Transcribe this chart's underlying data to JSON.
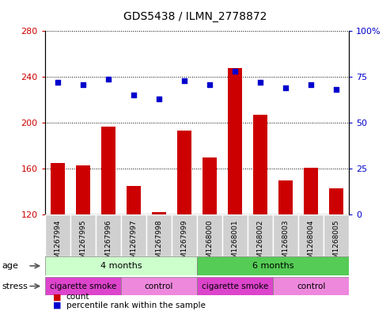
{
  "title": "GDS5438 / ILMN_2778872",
  "samples": [
    "GSM1267994",
    "GSM1267995",
    "GSM1267996",
    "GSM1267997",
    "GSM1267998",
    "GSM1267999",
    "GSM1268000",
    "GSM1268001",
    "GSM1268002",
    "GSM1268003",
    "GSM1268004",
    "GSM1268005"
  ],
  "counts": [
    165,
    163,
    197,
    145,
    122,
    193,
    170,
    248,
    207,
    150,
    161,
    143
  ],
  "percentiles": [
    72,
    71,
    74,
    65,
    63,
    73,
    71,
    78,
    72,
    69,
    71,
    68
  ],
  "ylim_left": [
    120,
    280
  ],
  "ylim_right": [
    0,
    100
  ],
  "yticks_left": [
    120,
    160,
    200,
    240,
    280
  ],
  "yticks_right": [
    0,
    25,
    50,
    75,
    100
  ],
  "bar_color": "#cc0000",
  "scatter_color": "#0000cc",
  "grid_color": "#000000",
  "bg_color": "#ffffff",
  "plot_bg": "#ffffff",
  "age_groups": [
    {
      "label": "4 months",
      "start": 0,
      "end": 5,
      "color": "#ccffcc"
    },
    {
      "label": "6 months",
      "start": 6,
      "end": 11,
      "color": "#55cc55"
    }
  ],
  "stress_groups": [
    {
      "label": "cigarette smoke",
      "start": 0,
      "end": 2,
      "color": "#dd44cc"
    },
    {
      "label": "control",
      "start": 3,
      "end": 5,
      "color": "#ee88dd"
    },
    {
      "label": "cigarette smoke",
      "start": 6,
      "end": 8,
      "color": "#dd44cc"
    },
    {
      "label": "control",
      "start": 9,
      "end": 11,
      "color": "#ee88dd"
    }
  ]
}
